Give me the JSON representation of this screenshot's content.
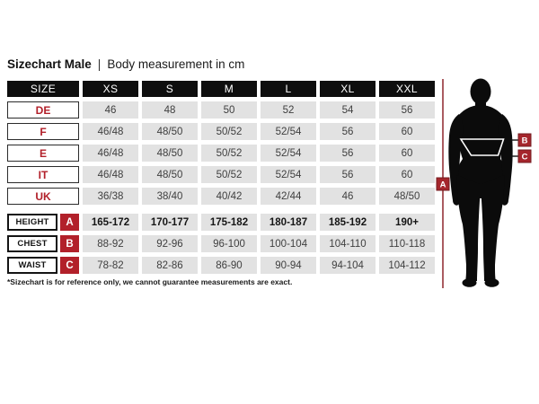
{
  "title": {
    "main": "Sizechart Male",
    "separator": "|",
    "sub": "Body measurement in cm"
  },
  "table": {
    "header": {
      "label": "SIZE",
      "columns": [
        "XS",
        "S",
        "M",
        "L",
        "XL",
        "XXL"
      ]
    },
    "size_rows": [
      {
        "label": "DE",
        "values": [
          "46",
          "48",
          "50",
          "52",
          "54",
          "56"
        ]
      },
      {
        "label": "F",
        "values": [
          "46/48",
          "48/50",
          "50/52",
          "52/54",
          "56",
          "60"
        ]
      },
      {
        "label": "E",
        "values": [
          "46/48",
          "48/50",
          "50/52",
          "52/54",
          "56",
          "60"
        ]
      },
      {
        "label": "IT",
        "values": [
          "46/48",
          "48/50",
          "50/52",
          "52/54",
          "56",
          "60"
        ]
      },
      {
        "label": "UK",
        "values": [
          "36/38",
          "38/40",
          "40/42",
          "42/44",
          "46",
          "48/50"
        ]
      }
    ],
    "measure_rows": [
      {
        "label": "HEIGHT",
        "badge": "A",
        "bold": true,
        "values": [
          "165-172",
          "170-177",
          "175-182",
          "180-187",
          "185-192",
          "190+"
        ]
      },
      {
        "label": "CHEST",
        "badge": "B",
        "bold": false,
        "values": [
          "88-92",
          "92-96",
          "96-100",
          "100-104",
          "104-110",
          "110-118"
        ]
      },
      {
        "label": "WAIST",
        "badge": "C",
        "bold": false,
        "values": [
          "78-82",
          "82-86",
          "86-90",
          "90-94",
          "94-104",
          "104-112"
        ]
      }
    ]
  },
  "footnote": "*Sizechart is for reference only, we cannot guarantee measurements are exact.",
  "figure": {
    "badges": {
      "height": "A",
      "chest": "B",
      "waist": "C"
    }
  },
  "colors": {
    "accent_red": "#b2202a",
    "figure_badge_red": "#a5262c",
    "figure_badge_border": "#741c21",
    "height_line_red": "#9b4045",
    "header_black": "#0e0e0e",
    "cell_gray": "#e2e2e2",
    "cell_text": "#3f3f3f"
  }
}
